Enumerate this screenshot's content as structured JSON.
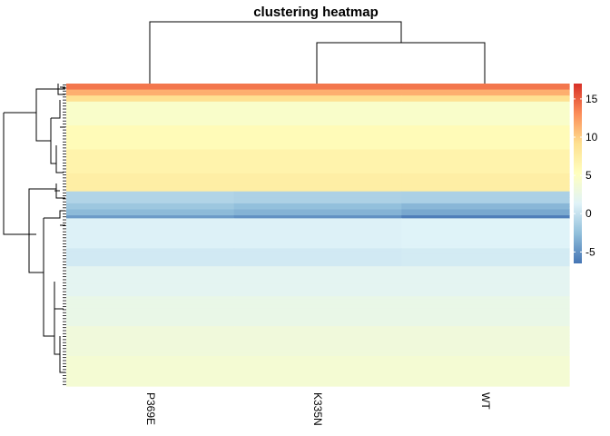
{
  "chart_data": {
    "type": "heatmap",
    "title": "clustering heatmap",
    "columns": [
      "P369E",
      "K335N",
      "WT"
    ],
    "legend": {
      "ticks": [
        -5,
        0,
        5,
        10,
        15
      ],
      "min": -6.5,
      "max": 17,
      "colors": [
        "#4575b4",
        "#91bfdb",
        "#e0f3f8",
        "#ffffbf",
        "#fee090",
        "#fc8d59",
        "#d73027"
      ]
    },
    "row_blocks": [
      {
        "rows": 2,
        "values": [
          14,
          14,
          14
        ]
      },
      {
        "rows": 2,
        "values": [
          11.5,
          11.5,
          11.5
        ]
      },
      {
        "rows": 2,
        "values": [
          9,
          9,
          9
        ]
      },
      {
        "rows": 8,
        "values": [
          4.5,
          4.5,
          4.5
        ]
      },
      {
        "rows": 8,
        "values": [
          5.8,
          5.8,
          5.8
        ]
      },
      {
        "rows": 8,
        "values": [
          6.8,
          6.8,
          6.8
        ]
      },
      {
        "rows": 6,
        "values": [
          7.4,
          7.4,
          7.4
        ]
      },
      {
        "rows": 4,
        "values": [
          -1.0,
          -1.2,
          -1.3
        ]
      },
      {
        "rows": 2,
        "values": [
          -2.0,
          -2.5,
          -3.0
        ]
      },
      {
        "rows": 2,
        "values": [
          -2.8,
          -3.2,
          -3.8
        ]
      },
      {
        "rows": 1,
        "values": [
          -4.5,
          -5.0,
          -6.0
        ]
      },
      {
        "rows": 10,
        "values": [
          1.2,
          1.2,
          1.3
        ]
      },
      {
        "rows": 6,
        "values": [
          0.6,
          0.6,
          0.7
        ]
      },
      {
        "rows": 10,
        "values": [
          1.8,
          1.8,
          1.8
        ]
      },
      {
        "rows": 10,
        "values": [
          2.5,
          2.5,
          2.5
        ]
      },
      {
        "rows": 10,
        "values": [
          3.3,
          3.3,
          3.3
        ]
      },
      {
        "rows": 10,
        "values": [
          3.9,
          3.9,
          3.9
        ]
      }
    ]
  }
}
